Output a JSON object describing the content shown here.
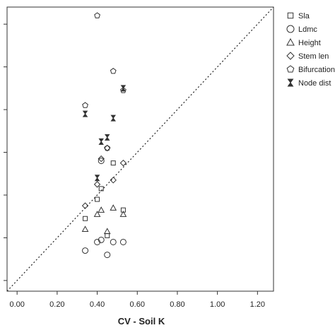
{
  "chart_data": {
    "type": "scatter",
    "title": "",
    "xlabel": "CV - Soil K",
    "ylabel": "",
    "xlim": [
      -0.05,
      1.28
    ],
    "ylim": [
      -0.05,
      1.28
    ],
    "x_ticks": [
      "0.00",
      "0.20",
      "0.40",
      "0.60",
      "0.80",
      "1.00",
      "1.20"
    ],
    "x_tick_values": [
      0,
      0.2,
      0.4,
      0.6,
      0.8,
      1.0,
      1.2
    ],
    "y_tick_values": [
      0,
      0.2,
      0.4,
      0.6,
      0.8,
      1.0,
      1.2
    ],
    "y_tick_labels_visible": false,
    "reference_line": "y = x (dotted)",
    "grid": false,
    "legend_position": "right",
    "series": [
      {
        "name": "Sla",
        "marker": "square",
        "points": [
          [
            0.34,
            0.29
          ],
          [
            0.4,
            0.38
          ],
          [
            0.42,
            0.43
          ],
          [
            0.45,
            0.21
          ],
          [
            0.48,
            0.55
          ],
          [
            0.53,
            0.33
          ]
        ]
      },
      {
        "name": "Ldmc",
        "marker": "circle",
        "points": [
          [
            0.34,
            0.14
          ],
          [
            0.4,
            0.18
          ],
          [
            0.42,
            0.19
          ],
          [
            0.45,
            0.12
          ],
          [
            0.48,
            0.18
          ],
          [
            0.53,
            0.18
          ],
          [
            0.42,
            0.56
          ]
        ]
      },
      {
        "name": "Height",
        "marker": "triangle",
        "points": [
          [
            0.34,
            0.24
          ],
          [
            0.4,
            0.31
          ],
          [
            0.42,
            0.33
          ],
          [
            0.45,
            0.23
          ],
          [
            0.48,
            0.34
          ],
          [
            0.53,
            0.31
          ]
        ]
      },
      {
        "name": "Stem len",
        "marker": "diamond",
        "points": [
          [
            0.34,
            0.35
          ],
          [
            0.4,
            0.45
          ],
          [
            0.42,
            0.57
          ],
          [
            0.45,
            0.62
          ],
          [
            0.48,
            0.47
          ],
          [
            0.53,
            0.55
          ]
        ]
      },
      {
        "name": "Bifurcation",
        "marker": "pentagon",
        "points": [
          [
            0.34,
            0.82
          ],
          [
            0.4,
            1.24
          ],
          [
            0.45,
            0.62
          ],
          [
            0.48,
            0.98
          ],
          [
            0.53,
            0.89
          ]
        ]
      },
      {
        "name": "Node dist",
        "marker": "hourglass",
        "points": [
          [
            0.34,
            0.78
          ],
          [
            0.4,
            0.48
          ],
          [
            0.42,
            0.65
          ],
          [
            0.45,
            0.67
          ],
          [
            0.48,
            0.76
          ],
          [
            0.53,
            0.9
          ]
        ]
      }
    ]
  }
}
